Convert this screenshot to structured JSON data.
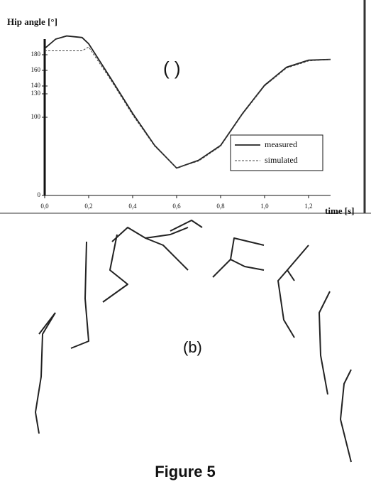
{
  "chart_data": {
    "type": "line",
    "ylabel": "Hip angle [°]",
    "xlabel": "time [s]",
    "panel_label": "( )",
    "x": [
      0,
      0.05,
      0.1,
      0.17,
      0.2,
      0.3,
      0.4,
      0.5,
      0.6,
      0.7,
      0.8,
      0.9,
      1.0,
      1.1,
      1.2,
      1.3
    ],
    "series": [
      {
        "name": "measured",
        "color": "#222222",
        "dash": false,
        "values": [
          188,
          200,
          204,
          202,
          194,
          150,
          105,
          64,
          35,
          45,
          64,
          105,
          141,
          164,
          173,
          174
        ]
      },
      {
        "name": "simulated",
        "color": "#444444",
        "dash": true,
        "values": [
          185,
          185,
          185,
          185,
          190,
          148,
          103,
          63,
          35,
          44,
          63,
          104,
          140,
          163,
          172,
          174
        ]
      }
    ],
    "xlim": [
      0,
      1.3
    ],
    "xticks": [
      {
        "value": 0,
        "label": "0,0"
      },
      {
        "value": 0.2,
        "label": "0,2"
      },
      {
        "value": 0.4,
        "label": "0,4"
      },
      {
        "value": 0.6,
        "label": "0,6"
      },
      {
        "value": 0.8,
        "label": "0,8"
      },
      {
        "value": 1.0,
        "label": "1,0"
      },
      {
        "value": 1.2,
        "label": "1,2"
      }
    ],
    "ylim": [
      0,
      200
    ],
    "yticks": [
      0,
      100,
      130,
      140,
      160,
      180
    ],
    "legend": "lower right"
  },
  "panel_b": {
    "label": "(b)"
  },
  "caption": "Figure 5"
}
